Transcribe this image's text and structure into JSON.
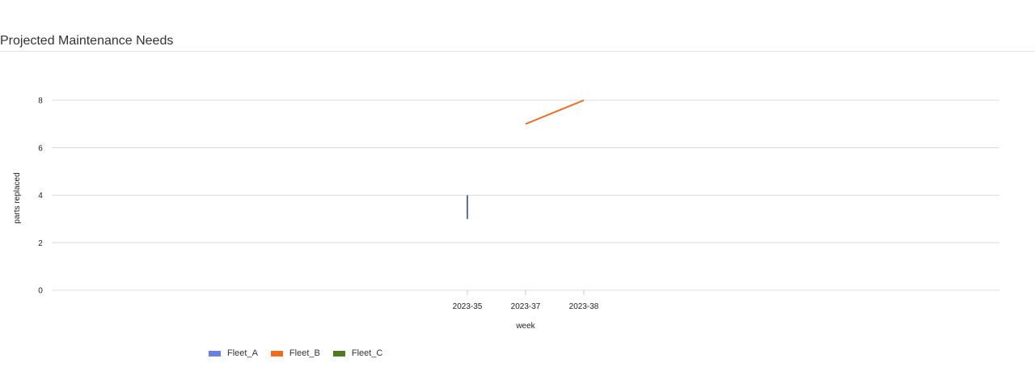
{
  "header": {
    "title": "Projected Maintenance Needs"
  },
  "chart_data": {
    "type": "line",
    "title": "",
    "xlabel": "week",
    "ylabel": "parts replaced",
    "categories": [
      "2023-35",
      "2023-37",
      "2023-38"
    ],
    "ylim": [
      0,
      8
    ],
    "yticks": [
      0,
      2,
      4,
      6,
      8
    ],
    "grid": true,
    "legend_position": "bottom-left",
    "series": [
      {
        "name": "Fleet_A",
        "color": "#6b7fe0",
        "line_color": "#5b6fb8",
        "segments": [
          [
            {
              "x": "2023-35",
              "y": 3
            },
            {
              "x": "2023-35",
              "y": 4
            }
          ]
        ]
      },
      {
        "name": "Fleet_B",
        "color": "#f26a1b",
        "line_color": "#f26a1b",
        "segments": [
          [
            {
              "x": "2023-37",
              "y": 7
            },
            {
              "x": "2023-38",
              "y": 8
            }
          ]
        ]
      },
      {
        "name": "Fleet_C",
        "color": "#4e7a1f",
        "line_color": "#4e7a1f",
        "segments": []
      }
    ]
  }
}
